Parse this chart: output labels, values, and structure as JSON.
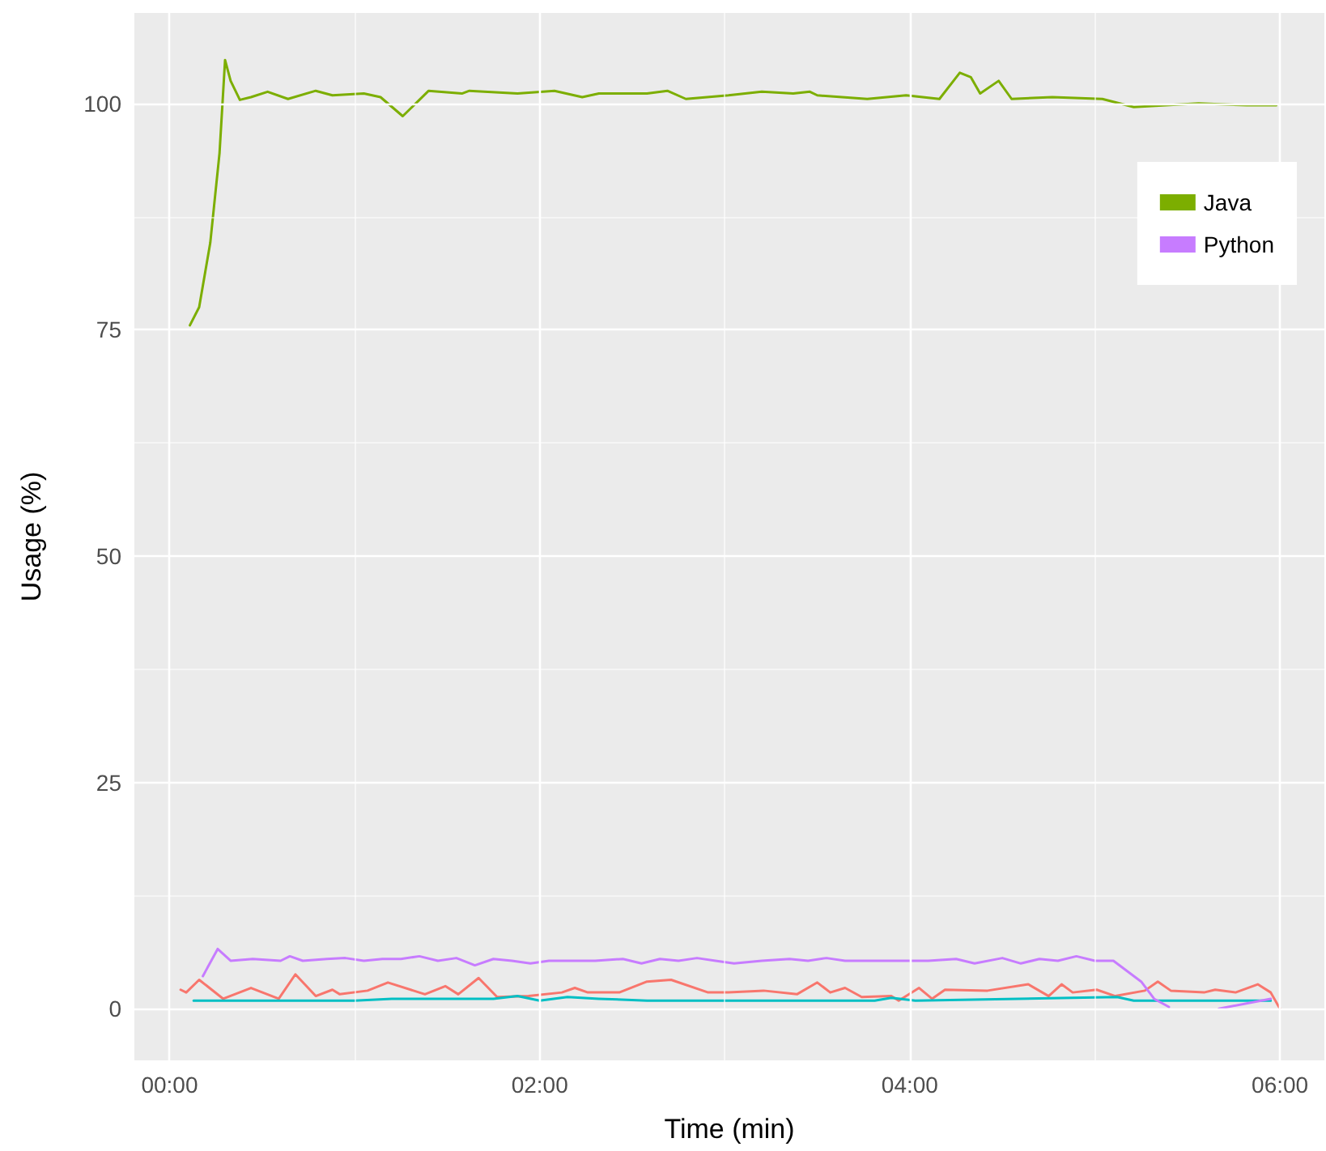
{
  "chart_data": {
    "type": "line",
    "xlabel": "Time (min)",
    "ylabel": "Usage (%)",
    "xlim": [
      -0.19,
      6.24
    ],
    "ylim": [
      -5.7,
      110
    ],
    "xticks": [
      {
        "value": 0,
        "label": "00:00"
      },
      {
        "value": 2,
        "label": "02:00"
      },
      {
        "value": 4,
        "label": "04:00"
      },
      {
        "value": 6,
        "label": "06:00"
      }
    ],
    "yticks": [
      0,
      25,
      50,
      75,
      100
    ],
    "grid": true,
    "legend": "top right",
    "line_style": "solid",
    "marker": "none",
    "series": [
      {
        "color": "#f8766d",
        "x": [
          0.06,
          0.09,
          0.16,
          0.29,
          0.44,
          0.59,
          0.68,
          0.79,
          0.88,
          0.92,
          1.07,
          1.18,
          1.38,
          1.49,
          1.56,
          1.67,
          1.77,
          1.94,
          2.12,
          2.19,
          2.26,
          2.43,
          2.58,
          2.71,
          2.91,
          3.02,
          3.21,
          3.39,
          3.5,
          3.57,
          3.65,
          3.74,
          3.9,
          3.94,
          4.05,
          4.12,
          4.19,
          4.42,
          4.64,
          4.75,
          4.82,
          4.88,
          5.01,
          5.11,
          5.27,
          5.34,
          5.41,
          5.59,
          5.65,
          5.76,
          5.88,
          5.95,
          6.0
        ],
        "values": [
          2.1,
          1.8,
          3.2,
          1.1,
          2.3,
          1.1,
          3.8,
          1.4,
          2.1,
          1.6,
          2.0,
          2.9,
          1.6,
          2.5,
          1.6,
          3.4,
          1.3,
          1.4,
          1.8,
          2.3,
          1.8,
          1.8,
          3.0,
          3.2,
          1.8,
          1.8,
          2.0,
          1.6,
          2.9,
          1.8,
          2.3,
          1.3,
          1.4,
          0.9,
          2.3,
          1.1,
          2.1,
          2.0,
          2.7,
          1.4,
          2.7,
          1.8,
          2.1,
          1.4,
          2.0,
          3.0,
          2.0,
          1.8,
          2.1,
          1.8,
          2.7,
          1.8,
          0
        ]
      },
      {
        "name": "Java",
        "color": "#7cae00",
        "x": [
          0.11,
          0.16,
          0.22,
          0.27,
          0.3,
          0.33,
          0.38,
          0.44,
          0.53,
          0.64,
          0.79,
          0.88,
          1.05,
          1.14,
          1.26,
          1.33,
          1.4,
          1.58,
          1.62,
          1.88,
          2.08,
          2.23,
          2.32,
          2.58,
          2.69,
          2.79,
          3.02,
          3.2,
          3.37,
          3.46,
          3.5,
          3.77,
          3.98,
          4.16,
          4.27,
          4.33,
          4.38,
          4.48,
          4.55,
          4.77,
          5.04,
          5.21,
          5.56,
          5.82,
          5.98
        ],
        "values": [
          75.5,
          77.5,
          84.6,
          94.5,
          104.8,
          102.5,
          100.4,
          100.7,
          101.3,
          100.5,
          101.4,
          100.9,
          101.1,
          100.7,
          98.6,
          100.0,
          101.4,
          101.1,
          101.4,
          101.1,
          101.4,
          100.7,
          101.1,
          101.1,
          101.4,
          100.5,
          100.9,
          101.3,
          101.1,
          101.3,
          100.9,
          100.5,
          100.9,
          100.5,
          103.4,
          102.9,
          101.1,
          102.5,
          100.5,
          100.7,
          100.5,
          99.6,
          100.0,
          99.8,
          99.8
        ]
      },
      {
        "color": "#00bfc4",
        "x": [
          0.13,
          1.0,
          1.2,
          1.75,
          1.88,
          2.0,
          2.15,
          2.32,
          2.58,
          3.81,
          3.9,
          4.03,
          5.12,
          5.21,
          5.95
        ],
        "values": [
          0.9,
          0.9,
          1.1,
          1.1,
          1.4,
          0.9,
          1.3,
          1.1,
          0.9,
          0.9,
          1.2,
          0.9,
          1.3,
          0.9,
          0.9
        ]
      },
      {
        "name": "Python",
        "color": "#c77cff",
        "x": [
          0.18,
          0.26,
          0.33,
          0.45,
          0.6,
          0.65,
          0.72,
          0.85,
          0.95,
          1.05,
          1.15,
          1.25,
          1.35,
          1.45,
          1.55,
          1.65,
          1.75,
          1.85,
          1.95,
          2.05,
          2.15,
          2.3,
          2.45,
          2.55,
          2.65,
          2.75,
          2.85,
          2.95,
          3.05,
          3.2,
          3.35,
          3.45,
          3.55,
          3.65,
          3.8,
          3.95,
          4.1,
          4.25,
          4.35,
          4.5,
          4.6,
          4.7,
          4.8,
          4.9,
          5.0,
          5.1,
          5.25,
          5.32,
          5.4,
          5.5,
          5.67,
          5.95
        ],
        "values": [
          3.6,
          6.6,
          5.3,
          5.5,
          5.3,
          5.8,
          5.3,
          5.5,
          5.6,
          5.3,
          5.5,
          5.5,
          5.8,
          5.3,
          5.6,
          4.8,
          5.5,
          5.3,
          5.0,
          5.3,
          5.3,
          5.3,
          5.5,
          5.0,
          5.5,
          5.3,
          5.6,
          5.3,
          5.0,
          5.3,
          5.5,
          5.3,
          5.6,
          5.3,
          5.3,
          5.3,
          5.3,
          5.5,
          5.0,
          5.6,
          5.0,
          5.5,
          5.3,
          5.8,
          5.3,
          5.3,
          3.0,
          1.1,
          0.2,
          null,
          0,
          1.1
        ]
      }
    ]
  }
}
